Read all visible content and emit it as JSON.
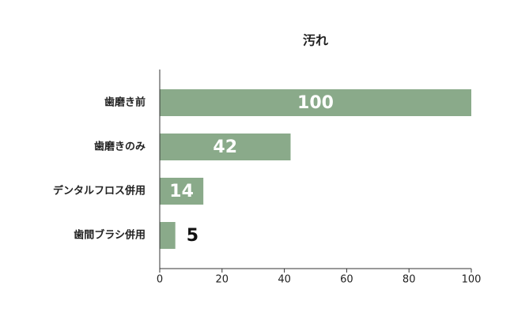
{
  "chart_data": {
    "type": "hbar",
    "title": "汚れ",
    "categories": [
      "歯磨き前",
      "歯磨きのみ",
      "デンタルフロス併用",
      "歯間ブラシ併用"
    ],
    "values": [
      100,
      42,
      14,
      5
    ],
    "color": "#8aaa8a",
    "xlim": [
      0,
      100
    ],
    "xticks": [
      0,
      20,
      40,
      60,
      80,
      100
    ]
  }
}
